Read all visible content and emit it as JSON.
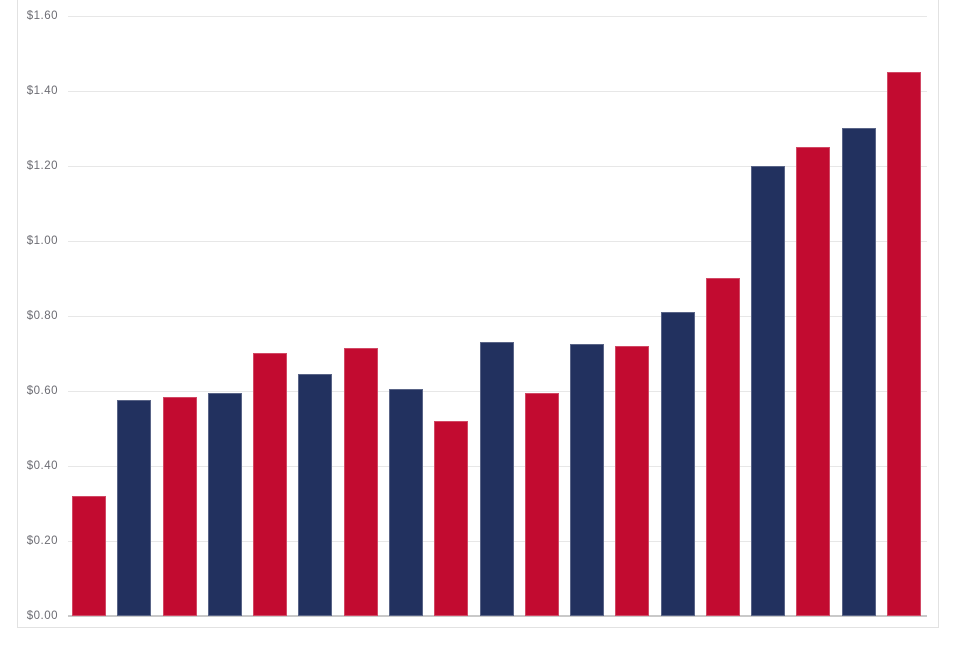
{
  "chart_data": {
    "type": "bar",
    "title": "",
    "xlabel": "",
    "ylabel": "",
    "x_axis_labels": [],
    "legend": "none",
    "grid": true,
    "ylim": [
      0,
      1.6
    ],
    "y_tick_interval": 0.2,
    "y_ticks": [
      {
        "label": "$1.60",
        "value": 1.6
      },
      {
        "label": "$1.40",
        "value": 1.4
      },
      {
        "label": "$1.20",
        "value": 1.2
      },
      {
        "label": "$1.00",
        "value": 1.0
      },
      {
        "label": "$0.80",
        "value": 0.8
      },
      {
        "label": "$0.60",
        "value": 0.6
      },
      {
        "label": "$0.40",
        "value": 0.4
      },
      {
        "label": "$0.20",
        "value": 0.2
      },
      {
        "label": "$0.00",
        "value": 0.0
      }
    ],
    "bars": [
      {
        "value": 0.32,
        "series": "red"
      },
      {
        "value": 0.575,
        "series": "navy"
      },
      {
        "value": 0.585,
        "series": "red"
      },
      {
        "value": 0.595,
        "series": "navy"
      },
      {
        "value": 0.7,
        "series": "red"
      },
      {
        "value": 0.645,
        "series": "navy"
      },
      {
        "value": 0.715,
        "series": "red"
      },
      {
        "value": 0.605,
        "series": "navy"
      },
      {
        "value": 0.52,
        "series": "red"
      },
      {
        "value": 0.73,
        "series": "navy"
      },
      {
        "value": 0.595,
        "series": "red"
      },
      {
        "value": 0.725,
        "series": "navy"
      },
      {
        "value": 0.72,
        "series": "red"
      },
      {
        "value": 0.81,
        "series": "navy"
      },
      {
        "value": 0.9,
        "series": "red"
      },
      {
        "value": 1.2,
        "series": "navy"
      },
      {
        "value": 1.25,
        "series": "red"
      },
      {
        "value": 1.3,
        "series": "navy"
      },
      {
        "value": 1.45,
        "series": "red"
      }
    ],
    "colors": {
      "red": "#C20B30",
      "navy": "#22315F"
    }
  }
}
